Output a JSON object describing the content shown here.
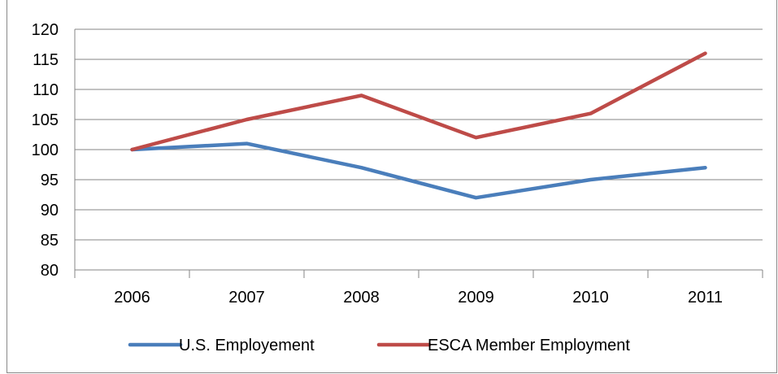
{
  "chart_data": {
    "type": "line",
    "categories": [
      "2006",
      "2007",
      "2008",
      "2009",
      "2010",
      "2011"
    ],
    "ylim": [
      80,
      120
    ],
    "ytick_step": 5,
    "grid": true,
    "legend_position": "bottom",
    "series": [
      {
        "name": "U.S. Employement",
        "color": "#4a7ebb",
        "values": [
          100,
          101,
          97,
          92,
          95,
          97
        ]
      },
      {
        "name": "ESCA Member Employment",
        "color": "#be4b48",
        "values": [
          100,
          105,
          109,
          102,
          106,
          116
        ]
      }
    ]
  }
}
